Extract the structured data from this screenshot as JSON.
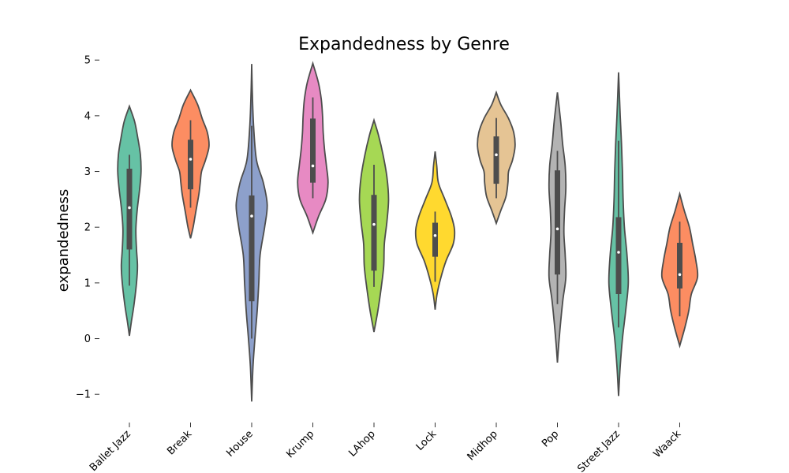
{
  "chart_data": {
    "type": "violin",
    "title": "Expandedness by Genre",
    "xlabel": "",
    "ylabel": "expandedness",
    "ylim": [
      -1.45,
      5.3
    ],
    "yticks": [
      -1,
      0,
      1,
      2,
      3,
      4,
      5
    ],
    "ytick_labels": [
      "−1",
      "0",
      "1",
      "2",
      "3",
      "4",
      "5"
    ],
    "grid": false,
    "categories": [
      "Ballet Jazz",
      "Break",
      "House",
      "Krump",
      "LAhop",
      "Lock",
      "Midhop",
      "Pop",
      "Street Jazz",
      "Waack"
    ],
    "violins": [
      {
        "category": "Ballet Jazz",
        "color": "#66c2a5",
        "median": 2.35,
        "q1": 1.6,
        "q3": 3.05,
        "whisker_low": 0.95,
        "whisker_high": 3.3,
        "density": [
          [
            0.05,
            0.0
          ],
          [
            0.3,
            0.06
          ],
          [
            0.6,
            0.14
          ],
          [
            1.0,
            0.22
          ],
          [
            1.3,
            0.25
          ],
          [
            1.6,
            0.22
          ],
          [
            1.95,
            0.2
          ],
          [
            2.3,
            0.24
          ],
          [
            2.7,
            0.32
          ],
          [
            3.0,
            0.36
          ],
          [
            3.3,
            0.34
          ],
          [
            3.6,
            0.26
          ],
          [
            3.9,
            0.16
          ],
          [
            4.17,
            0.0
          ]
        ]
      },
      {
        "category": "Break",
        "color": "#fc8d62",
        "median": 3.22,
        "q1": 2.68,
        "q3": 3.57,
        "whisker_low": 2.35,
        "whisker_high": 3.92,
        "density": [
          [
            1.8,
            0.0
          ],
          [
            2.0,
            0.08
          ],
          [
            2.2,
            0.14
          ],
          [
            2.4,
            0.2
          ],
          [
            2.6,
            0.26
          ],
          [
            2.8,
            0.3
          ],
          [
            3.0,
            0.34
          ],
          [
            3.2,
            0.46
          ],
          [
            3.45,
            0.57
          ],
          [
            3.7,
            0.52
          ],
          [
            3.95,
            0.36
          ],
          [
            4.2,
            0.22
          ],
          [
            4.46,
            0.0
          ]
        ]
      },
      {
        "category": "House",
        "color": "#8da0cb",
        "median": 2.2,
        "q1": 0.67,
        "q3": 2.57,
        "whisker_low": 0.0,
        "whisker_high": 3.82,
        "density": [
          [
            -1.13,
            0.0
          ],
          [
            -0.5,
            0.04
          ],
          [
            0.0,
            0.1
          ],
          [
            0.5,
            0.17
          ],
          [
            1.0,
            0.22
          ],
          [
            1.5,
            0.26
          ],
          [
            2.0,
            0.4
          ],
          [
            2.4,
            0.48
          ],
          [
            2.8,
            0.36
          ],
          [
            3.2,
            0.15
          ],
          [
            3.8,
            0.06
          ],
          [
            4.4,
            0.02
          ],
          [
            4.93,
            0.0
          ]
        ]
      },
      {
        "category": "Krump",
        "color": "#e78ac3",
        "median": 3.1,
        "q1": 2.8,
        "q3": 3.95,
        "whisker_low": 2.52,
        "whisker_high": 4.33,
        "density": [
          [
            1.9,
            0.0
          ],
          [
            2.2,
            0.18
          ],
          [
            2.5,
            0.4
          ],
          [
            2.8,
            0.47
          ],
          [
            3.1,
            0.42
          ],
          [
            3.4,
            0.36
          ],
          [
            3.7,
            0.32
          ],
          [
            4.0,
            0.3
          ],
          [
            4.3,
            0.26
          ],
          [
            4.6,
            0.17
          ],
          [
            4.94,
            0.0
          ]
        ]
      },
      {
        "category": "LAhop",
        "color": "#a6d854",
        "median": 2.05,
        "q1": 1.22,
        "q3": 2.58,
        "whisker_low": 0.93,
        "whisker_high": 3.12,
        "density": [
          [
            0.12,
            0.0
          ],
          [
            0.5,
            0.12
          ],
          [
            0.9,
            0.22
          ],
          [
            1.3,
            0.3
          ],
          [
            1.7,
            0.32
          ],
          [
            2.1,
            0.4
          ],
          [
            2.5,
            0.45
          ],
          [
            2.9,
            0.4
          ],
          [
            3.3,
            0.28
          ],
          [
            3.65,
            0.14
          ],
          [
            3.92,
            0.0
          ]
        ]
      },
      {
        "category": "Lock",
        "color": "#ffd92f",
        "median": 1.85,
        "q1": 1.47,
        "q3": 2.08,
        "whisker_low": 1.02,
        "whisker_high": 2.28,
        "density": [
          [
            0.52,
            0.0
          ],
          [
            0.8,
            0.06
          ],
          [
            1.1,
            0.18
          ],
          [
            1.4,
            0.34
          ],
          [
            1.7,
            0.56
          ],
          [
            1.95,
            0.6
          ],
          [
            2.2,
            0.5
          ],
          [
            2.5,
            0.3
          ],
          [
            2.8,
            0.1
          ],
          [
            3.1,
            0.05
          ],
          [
            3.36,
            0.0
          ]
        ]
      },
      {
        "category": "Midhop",
        "color": "#e5c494",
        "median": 3.3,
        "q1": 2.78,
        "q3": 3.63,
        "whisker_low": 2.52,
        "whisker_high": 3.96,
        "density": [
          [
            2.07,
            0.0
          ],
          [
            2.3,
            0.14
          ],
          [
            2.55,
            0.3
          ],
          [
            2.8,
            0.36
          ],
          [
            3.0,
            0.38
          ],
          [
            3.2,
            0.5
          ],
          [
            3.45,
            0.58
          ],
          [
            3.7,
            0.54
          ],
          [
            3.95,
            0.38
          ],
          [
            4.2,
            0.14
          ],
          [
            4.42,
            0.0
          ]
        ]
      },
      {
        "category": "Pop",
        "color": "#b3b3b3",
        "median": 1.97,
        "q1": 1.15,
        "q3": 3.02,
        "whisker_low": 0.62,
        "whisker_high": 3.37,
        "density": [
          [
            -0.43,
            0.0
          ],
          [
            -0.1,
            0.04
          ],
          [
            0.3,
            0.1
          ],
          [
            0.7,
            0.17
          ],
          [
            1.1,
            0.26
          ],
          [
            1.5,
            0.24
          ],
          [
            1.9,
            0.2
          ],
          [
            2.3,
            0.22
          ],
          [
            2.7,
            0.26
          ],
          [
            3.1,
            0.24
          ],
          [
            3.5,
            0.16
          ],
          [
            3.9,
            0.1
          ],
          [
            4.42,
            0.0
          ]
        ]
      },
      {
        "category": "Street Jazz",
        "color": "#66c2a5",
        "median": 1.55,
        "q1": 0.8,
        "q3": 2.18,
        "whisker_low": 0.2,
        "whisker_high": 3.55,
        "density": [
          [
            -1.03,
            0.0
          ],
          [
            -0.5,
            0.05
          ],
          [
            0.0,
            0.12
          ],
          [
            0.5,
            0.22
          ],
          [
            1.0,
            0.3
          ],
          [
            1.5,
            0.26
          ],
          [
            2.0,
            0.18
          ],
          [
            2.5,
            0.14
          ],
          [
            3.0,
            0.12
          ],
          [
            3.5,
            0.09
          ],
          [
            4.0,
            0.05
          ],
          [
            4.78,
            0.0
          ]
        ]
      },
      {
        "category": "Waack",
        "color": "#fc8d62",
        "median": 1.15,
        "q1": 0.9,
        "q3": 1.72,
        "whisker_low": 0.4,
        "whisker_high": 2.1,
        "density": [
          [
            -0.13,
            0.0
          ],
          [
            0.2,
            0.16
          ],
          [
            0.5,
            0.28
          ],
          [
            0.8,
            0.36
          ],
          [
            1.1,
            0.55
          ],
          [
            1.4,
            0.5
          ],
          [
            1.7,
            0.4
          ],
          [
            2.0,
            0.3
          ],
          [
            2.3,
            0.14
          ],
          [
            2.6,
            0.0
          ]
        ]
      }
    ]
  }
}
